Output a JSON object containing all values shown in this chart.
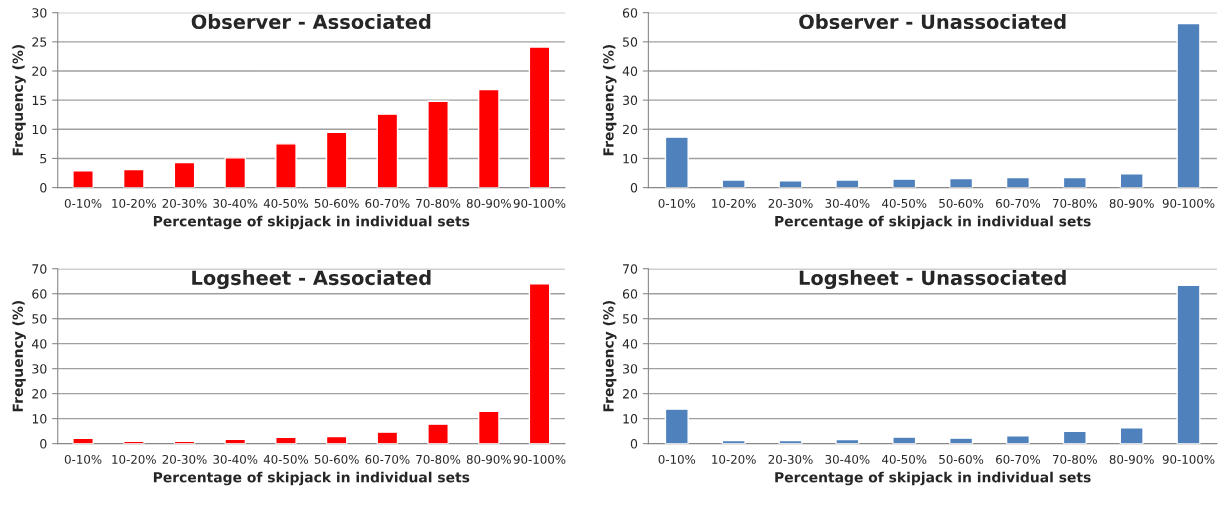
{
  "chart_data": [
    {
      "type": "bar",
      "title": "Observer - Associated",
      "xlabel": "Percentage of skipjack in individual sets",
      "ylabel": "Frequency (%)",
      "categories": [
        "0-10%",
        "10-20%",
        "20-30%",
        "30-40%",
        "40-50%",
        "50-60%",
        "60-70%",
        "70-80%",
        "80-90%",
        "90-100%"
      ],
      "values": [
        2.9,
        3.1,
        4.3,
        5.1,
        7.5,
        9.5,
        12.6,
        14.8,
        16.8,
        24.1
      ],
      "color": "#ff0000",
      "ylim": [
        0,
        30
      ],
      "yticks": [
        0,
        5,
        10,
        15,
        20,
        25,
        30
      ],
      "grid": "y",
      "legend": false
    },
    {
      "type": "bar",
      "title": "Observer - Unassociated",
      "xlabel": "Percentage of skipjack in individual sets",
      "ylabel": "Frequency (%)",
      "categories": [
        "0-10%",
        "10-20%",
        "20-30%",
        "30-40%",
        "40-50%",
        "50-60%",
        "60-70%",
        "70-80%",
        "80-90%",
        "90-100%"
      ],
      "values": [
        17.3,
        2.6,
        2.3,
        2.6,
        2.9,
        3.1,
        3.4,
        3.4,
        4.7,
        56.3
      ],
      "color": "#4f81bd",
      "ylim": [
        0,
        60
      ],
      "yticks": [
        0,
        10,
        20,
        30,
        40,
        50,
        60
      ],
      "grid": "y",
      "legend": false
    },
    {
      "type": "bar",
      "title": "Logsheet - Associated",
      "xlabel": "Percentage of skipjack in individual sets",
      "ylabel": "Frequency (%)",
      "categories": [
        "0-10%",
        "10-20%",
        "20-30%",
        "30-40%",
        "40-50%",
        "50-60%",
        "60-70%",
        "70-80%",
        "80-90%",
        "90-100%"
      ],
      "values": [
        2.1,
        0.9,
        0.9,
        1.7,
        2.5,
        2.8,
        4.6,
        7.8,
        12.9,
        64.0
      ],
      "color": "#ff0000",
      "ylim": [
        0,
        70
      ],
      "yticks": [
        0,
        10,
        20,
        30,
        40,
        50,
        60,
        70
      ],
      "grid": "y",
      "legend": false
    },
    {
      "type": "bar",
      "title": "Logsheet - Unassociated",
      "xlabel": "Percentage of skipjack in individual sets",
      "ylabel": "Frequency (%)",
      "categories": [
        "0-10%",
        "10-20%",
        "20-30%",
        "30-40%",
        "40-50%",
        "50-60%",
        "60-70%",
        "70-80%",
        "80-90%",
        "90-100%"
      ],
      "values": [
        13.8,
        1.2,
        1.2,
        1.6,
        2.6,
        2.2,
        3.1,
        4.9,
        6.3,
        63.4
      ],
      "color": "#4f81bd",
      "ylim": [
        0,
        70
      ],
      "yticks": [
        0,
        10,
        20,
        30,
        40,
        50,
        60,
        70
      ],
      "grid": "y",
      "legend": false
    }
  ]
}
